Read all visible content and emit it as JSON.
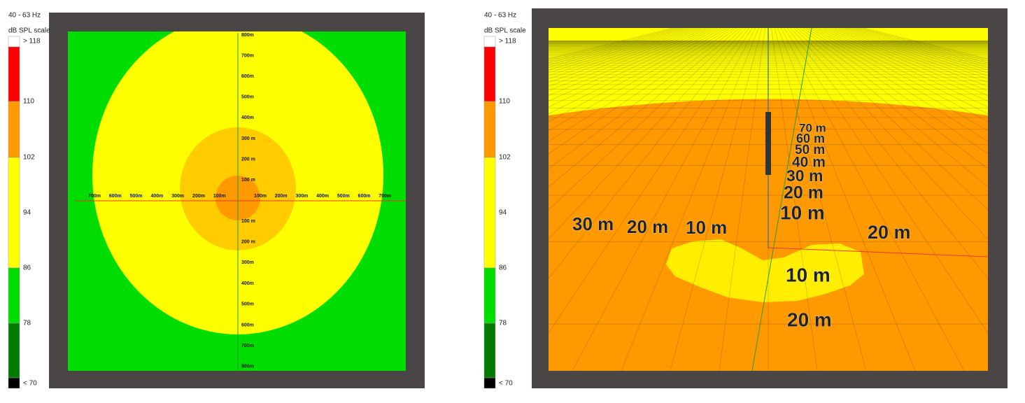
{
  "left": {
    "frequency": "40 - 63 Hz",
    "scale_title": "dB SPL scale",
    "legend": [
      "> 118",
      "110",
      "102",
      "94",
      "86",
      "78",
      "< 70"
    ],
    "x_labels_left": [
      "700m",
      "600m",
      "500m",
      "400m",
      "300m",
      "200m",
      "100m"
    ],
    "x_labels_right": [
      "100m",
      "200m",
      "300m",
      "400m",
      "500m",
      "600m",
      "700m"
    ],
    "y_labels_top": [
      "800m",
      "700m",
      "600m",
      "500m",
      "400m",
      "300 m",
      "200 m",
      "100 m"
    ],
    "y_labels_bottom": [
      "100 m",
      "200 m",
      "300m",
      "400m",
      "500m",
      "600m",
      "700m",
      "800m"
    ]
  },
  "right": {
    "frequency": "40 - 63 Hz",
    "scale_title": "dB SPL scale",
    "legend": [
      "> 118",
      "110",
      "102",
      "94",
      "86",
      "78",
      "< 70"
    ],
    "height_labels": [
      "70 m",
      "60 m",
      "50 m",
      "40 m",
      "30 m",
      "20 m",
      "10 m"
    ],
    "left_labels": [
      "30 m",
      "20 m",
      "10 m"
    ],
    "right_labels": [
      "20 m"
    ],
    "front_labels": [
      "10 m",
      "20 m"
    ]
  }
}
